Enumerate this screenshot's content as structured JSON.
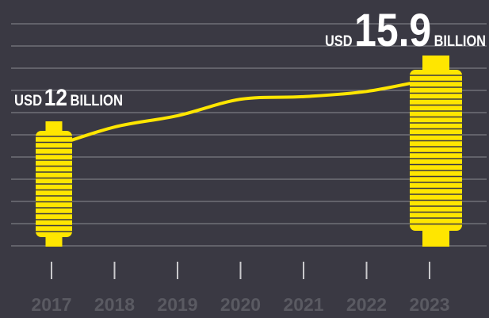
{
  "chart_data": {
    "type": "line",
    "categories": [
      "2017",
      "2018",
      "2019",
      "2020",
      "2021",
      "2022",
      "2023"
    ],
    "values": [
      12,
      13.15,
      13.8,
      14.75,
      14.9,
      15.2,
      15.9
    ],
    "color": "#ffe600",
    "ylim": [
      6.3,
      19.1
    ],
    "annotations": [
      {
        "prefix": "USD",
        "value": "12",
        "suffix": "BILLION"
      },
      {
        "prefix": "USD",
        "value": "15.9",
        "suffix": "BILLION"
      }
    ]
  }
}
